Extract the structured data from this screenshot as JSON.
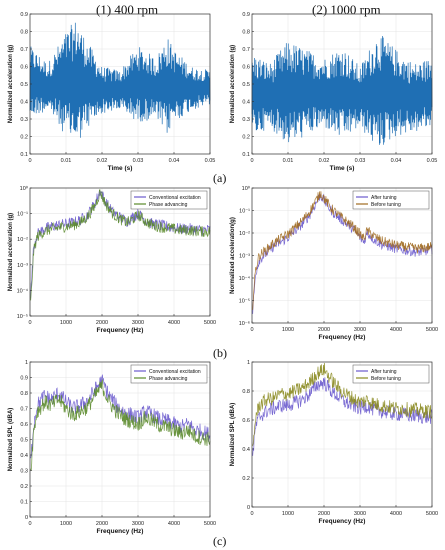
{
  "columns": [
    "(1) 400 rpm",
    "(2) 1000 rpm"
  ],
  "panel_labels": [
    "(a)",
    "(b)",
    "(c)"
  ],
  "colors": {
    "blue": "#1f6fb4",
    "purple": "#6a5acd",
    "orange": "#d9662a",
    "green": "#5a8a2a"
  },
  "chart_data": [
    {
      "type": "line",
      "panel": "a1",
      "xlabel": "Time (s)",
      "ylabel": "Normalized acceleration (g)",
      "xlim": [
        0,
        0.05
      ],
      "ylim": [
        0.1,
        0.9
      ],
      "xticks": [
        0,
        0.01,
        0.02,
        0.03,
        0.04,
        0.05
      ],
      "xtick_labels": [
        "0",
        "0.01",
        "0.02",
        "0.03",
        "0.04",
        "0.05"
      ],
      "yticks": [
        0.1,
        0.2,
        0.3,
        0.4,
        0.5,
        0.6,
        0.7,
        0.8,
        0.9
      ],
      "ytick_labels": [
        "0.1",
        "0.2",
        "0.3",
        "0.4",
        "0.5",
        "0.6",
        "0.7",
        "0.8",
        "0.9"
      ],
      "series": [
        {
          "color": "#1f6fb4",
          "x": [
            0,
            0.005,
            0.01,
            0.013,
            0.015,
            0.02,
            0.025,
            0.03,
            0.035,
            0.038,
            0.04,
            0.045,
            0.05
          ],
          "upper": [
            0.72,
            0.62,
            0.8,
            0.88,
            0.78,
            0.6,
            0.58,
            0.72,
            0.65,
            0.78,
            0.7,
            0.6,
            0.58
          ],
          "lower": [
            0.3,
            0.35,
            0.2,
            0.15,
            0.22,
            0.33,
            0.35,
            0.28,
            0.3,
            0.2,
            0.28,
            0.35,
            0.38
          ]
        }
      ]
    },
    {
      "type": "line",
      "panel": "a2",
      "xlabel": "Time (s)",
      "ylabel": "Normalized acceleration (g)",
      "xlim": [
        0,
        0.05
      ],
      "ylim": [
        0.1,
        0.9
      ],
      "xticks": [
        0,
        0.01,
        0.02,
        0.03,
        0.04,
        0.05
      ],
      "xtick_labels": [
        "0",
        "0.01",
        "0.02",
        "0.03",
        "0.04",
        "0.05"
      ],
      "yticks": [
        0.1,
        0.2,
        0.3,
        0.4,
        0.5,
        0.6,
        0.7,
        0.8,
        0.9
      ],
      "ytick_labels": [
        "0.1",
        "0.2",
        "0.3",
        "0.4",
        "0.5",
        "0.6",
        "0.7",
        "0.8",
        "0.9"
      ],
      "series": [
        {
          "color": "#1f6fb4",
          "x": [
            0,
            0.005,
            0.01,
            0.015,
            0.02,
            0.025,
            0.03,
            0.035,
            0.04,
            0.045,
            0.05
          ],
          "upper": [
            0.68,
            0.62,
            0.75,
            0.7,
            0.65,
            0.72,
            0.6,
            0.8,
            0.7,
            0.62,
            0.65
          ],
          "lower": [
            0.2,
            0.25,
            0.15,
            0.2,
            0.25,
            0.18,
            0.25,
            0.12,
            0.2,
            0.22,
            0.25
          ]
        }
      ]
    },
    {
      "type": "line",
      "panel": "b1",
      "xlabel": "Frequency (Hz)",
      "ylabel": "Normalized acceleration (g)",
      "log_y": true,
      "xlim": [
        0,
        5000
      ],
      "ylim": [
        -5,
        0
      ],
      "xticks": [
        0,
        1000,
        2000,
        3000,
        4000,
        5000
      ],
      "xtick_labels": [
        "0",
        "1000",
        "2000",
        "3000",
        "4000",
        "5000"
      ],
      "yticks": [
        0,
        -1,
        -2,
        -3,
        -4,
        -5
      ],
      "ytick_labels": [
        "10⁰",
        "10⁻¹",
        "10⁻²",
        "10⁻³",
        "10⁻⁴",
        "10⁻⁵"
      ],
      "legend": [
        "Conventional excitation",
        "Phase advancing"
      ],
      "legend_position": "top-right",
      "series": [
        {
          "name": "Conventional excitation",
          "color": "#6a5acd",
          "x": [
            20,
            100,
            200,
            400,
            600,
            800,
            1000,
            1200,
            1400,
            1600,
            1800,
            1950,
            2100,
            2300,
            2500,
            2700,
            2900,
            3000,
            3200,
            3400,
            3600,
            3800,
            4000,
            4200,
            4400,
            4600,
            4800,
            5000
          ],
          "y": [
            -4.2,
            -2.3,
            -1.8,
            -1.6,
            -1.5,
            -1.45,
            -1.4,
            -1.35,
            -1.25,
            -1.05,
            -0.6,
            -0.1,
            -0.55,
            -0.95,
            -1.15,
            -1.3,
            -1.1,
            -1.0,
            -1.25,
            -1.4,
            -1.45,
            -1.5,
            -1.55,
            -1.6,
            -1.58,
            -1.62,
            -1.65,
            -1.62
          ]
        },
        {
          "name": "Phase advancing",
          "color": "#5a8a2a",
          "x": [
            20,
            100,
            200,
            400,
            600,
            800,
            1000,
            1200,
            1400,
            1600,
            1800,
            1950,
            2100,
            2300,
            2500,
            2700,
            2900,
            3000,
            3200,
            3400,
            3600,
            3800,
            4000,
            4200,
            4400,
            4600,
            4800,
            5000
          ],
          "y": [
            -4.5,
            -2.5,
            -1.9,
            -1.7,
            -1.6,
            -1.55,
            -1.5,
            -1.45,
            -1.35,
            -1.12,
            -0.7,
            -0.15,
            -0.62,
            -1.0,
            -1.22,
            -1.35,
            -1.18,
            -1.05,
            -1.3,
            -1.45,
            -1.52,
            -1.55,
            -1.6,
            -1.65,
            -1.65,
            -1.68,
            -1.7,
            -1.7
          ]
        }
      ]
    },
    {
      "type": "line",
      "panel": "b2",
      "xlabel": "Frequency (Hz)",
      "ylabel": "Normalized acceleration(g)",
      "log_y": true,
      "xlim": [
        0,
        5000
      ],
      "ylim": [
        -6,
        0
      ],
      "xticks": [
        0,
        1000,
        2000,
        3000,
        4000,
        5000
      ],
      "xtick_labels": [
        "0",
        "1000",
        "2000",
        "3000",
        "4000",
        "5000"
      ],
      "yticks": [
        0,
        -1,
        -2,
        -3,
        -4,
        -5,
        -6
      ],
      "ytick_labels": [
        "10⁰",
        "10⁻¹",
        "10⁻²",
        "10⁻³",
        "10⁻⁴",
        "10⁻⁵",
        "10⁻⁶"
      ],
      "legend": [
        "After tuning",
        "Before tuning"
      ],
      "legend_position": "top-right",
      "series": [
        {
          "name": "After tuning",
          "color": "#6a5acd",
          "x": [
            20,
            100,
            200,
            400,
            600,
            800,
            1000,
            1200,
            1400,
            1600,
            1800,
            1900,
            2000,
            2200,
            2400,
            2600,
            2800,
            3000,
            3100,
            3200,
            3400,
            3600,
            3800,
            4000,
            4200,
            4400,
            4600,
            4800,
            5000
          ],
          "y": [
            -5.5,
            -3.8,
            -3.2,
            -2.9,
            -2.6,
            -2.4,
            -2.2,
            -1.9,
            -1.6,
            -1.2,
            -0.6,
            -0.3,
            -0.55,
            -1.0,
            -1.3,
            -1.55,
            -1.8,
            -2.2,
            -2.4,
            -2.0,
            -2.3,
            -2.5,
            -2.6,
            -2.7,
            -2.75,
            -2.8,
            -2.85,
            -2.8,
            -2.75
          ]
        },
        {
          "name": "Before tuning",
          "color": "#a06a20",
          "x": [
            20,
            100,
            200,
            400,
            600,
            800,
            1000,
            1200,
            1400,
            1600,
            1800,
            1900,
            2000,
            2200,
            2400,
            2600,
            2800,
            3000,
            3100,
            3200,
            3400,
            3600,
            3800,
            4000,
            4200,
            4400,
            4600,
            4800,
            5000
          ],
          "y": [
            -5.2,
            -3.6,
            -3.0,
            -2.75,
            -2.45,
            -2.25,
            -2.05,
            -1.75,
            -1.45,
            -1.05,
            -0.5,
            -0.2,
            -0.45,
            -0.9,
            -1.2,
            -1.45,
            -1.7,
            -2.05,
            -2.25,
            -1.9,
            -2.15,
            -2.35,
            -2.45,
            -2.55,
            -2.6,
            -2.65,
            -2.7,
            -2.65,
            -2.6
          ]
        }
      ]
    },
    {
      "type": "line",
      "panel": "c1",
      "xlabel": "Frequency (Hz)",
      "ylabel": "Normalized SPL (dBA)",
      "xlim": [
        0,
        5000
      ],
      "ylim": [
        0,
        1
      ],
      "xticks": [
        0,
        1000,
        2000,
        3000,
        4000,
        5000
      ],
      "xtick_labels": [
        "0",
        "1000",
        "2000",
        "3000",
        "4000",
        "5000"
      ],
      "yticks": [
        0,
        0.1,
        0.2,
        0.3,
        0.4,
        0.5,
        0.6,
        0.7,
        0.8,
        0.9,
        1
      ],
      "ytick_labels": [
        "0",
        "0.1",
        "0.2",
        "0.3",
        "0.4",
        "0.5",
        "0.6",
        "0.7",
        "0.8",
        "0.9",
        "1"
      ],
      "legend": [
        "Conventional excitation",
        "Phase advancing"
      ],
      "legend_position": "top-right",
      "series": [
        {
          "name": "Conventional excitation",
          "color": "#6a5acd",
          "x": [
            20,
            100,
            200,
            400,
            600,
            800,
            1000,
            1200,
            1400,
            1600,
            1800,
            2000,
            2200,
            2400,
            2600,
            2800,
            3000,
            3200,
            3400,
            3600,
            3800,
            4000,
            4200,
            4400,
            4600,
            4800,
            5000
          ],
          "y": [
            0.35,
            0.6,
            0.72,
            0.78,
            0.76,
            0.8,
            0.74,
            0.7,
            0.72,
            0.75,
            0.82,
            0.88,
            0.78,
            0.72,
            0.68,
            0.66,
            0.64,
            0.68,
            0.66,
            0.63,
            0.62,
            0.6,
            0.58,
            0.6,
            0.56,
            0.55,
            0.53
          ]
        },
        {
          "name": "Phase advancing",
          "color": "#5a8a2a",
          "x": [
            20,
            100,
            200,
            400,
            600,
            800,
            1000,
            1200,
            1400,
            1600,
            1800,
            2000,
            2200,
            2400,
            2600,
            2800,
            3000,
            3200,
            3400,
            3600,
            3800,
            4000,
            4200,
            4400,
            4600,
            4800,
            5000
          ],
          "y": [
            0.3,
            0.55,
            0.68,
            0.74,
            0.72,
            0.76,
            0.7,
            0.66,
            0.68,
            0.71,
            0.78,
            0.85,
            0.74,
            0.68,
            0.64,
            0.62,
            0.6,
            0.64,
            0.62,
            0.59,
            0.58,
            0.56,
            0.54,
            0.56,
            0.52,
            0.51,
            0.5
          ]
        }
      ]
    },
    {
      "type": "line",
      "panel": "c2",
      "xlabel": "Frequency (Hz)",
      "ylabel": "Normalized SPL (dBA)",
      "xlim": [
        0,
        5000
      ],
      "ylim": [
        0,
        1
      ],
      "xticks": [
        0,
        1000,
        2000,
        3000,
        4000,
        5000
      ],
      "xtick_labels": [
        "0",
        "1000",
        "2000",
        "3000",
        "4000",
        "5000"
      ],
      "yticks": [
        0,
        0.2,
        0.4,
        0.6,
        0.8,
        1
      ],
      "ytick_labels": [
        "0",
        "0.2",
        "0.4",
        "0.6",
        "0.8",
        "1"
      ],
      "legend": [
        "After tuning",
        "Before tuning"
      ],
      "legend_position": "top-right",
      "series": [
        {
          "name": "After tuning",
          "color": "#6a5acd",
          "x": [
            20,
            100,
            200,
            400,
            600,
            800,
            1000,
            1200,
            1400,
            1600,
            1800,
            2000,
            2200,
            2400,
            2600,
            2800,
            3000,
            3200,
            3400,
            3600,
            3800,
            4000,
            4200,
            4400,
            4600,
            4800,
            5000
          ],
          "y": [
            0.35,
            0.55,
            0.62,
            0.66,
            0.68,
            0.7,
            0.7,
            0.72,
            0.74,
            0.78,
            0.84,
            0.86,
            0.8,
            0.76,
            0.72,
            0.7,
            0.68,
            0.7,
            0.67,
            0.66,
            0.65,
            0.64,
            0.64,
            0.63,
            0.63,
            0.62,
            0.62
          ]
        },
        {
          "name": "Before tuning",
          "color": "#8a8a20",
          "x": [
            20,
            100,
            200,
            400,
            600,
            800,
            1000,
            1200,
            1400,
            1600,
            1800,
            2000,
            2200,
            2400,
            2600,
            2800,
            3000,
            3200,
            3400,
            3600,
            3800,
            4000,
            4200,
            4400,
            4600,
            4800,
            5000
          ],
          "y": [
            0.4,
            0.62,
            0.7,
            0.74,
            0.75,
            0.78,
            0.78,
            0.8,
            0.82,
            0.86,
            0.92,
            0.95,
            0.88,
            0.82,
            0.78,
            0.75,
            0.72,
            0.74,
            0.71,
            0.7,
            0.69,
            0.68,
            0.68,
            0.67,
            0.67,
            0.66,
            0.66
          ]
        }
      ]
    }
  ]
}
